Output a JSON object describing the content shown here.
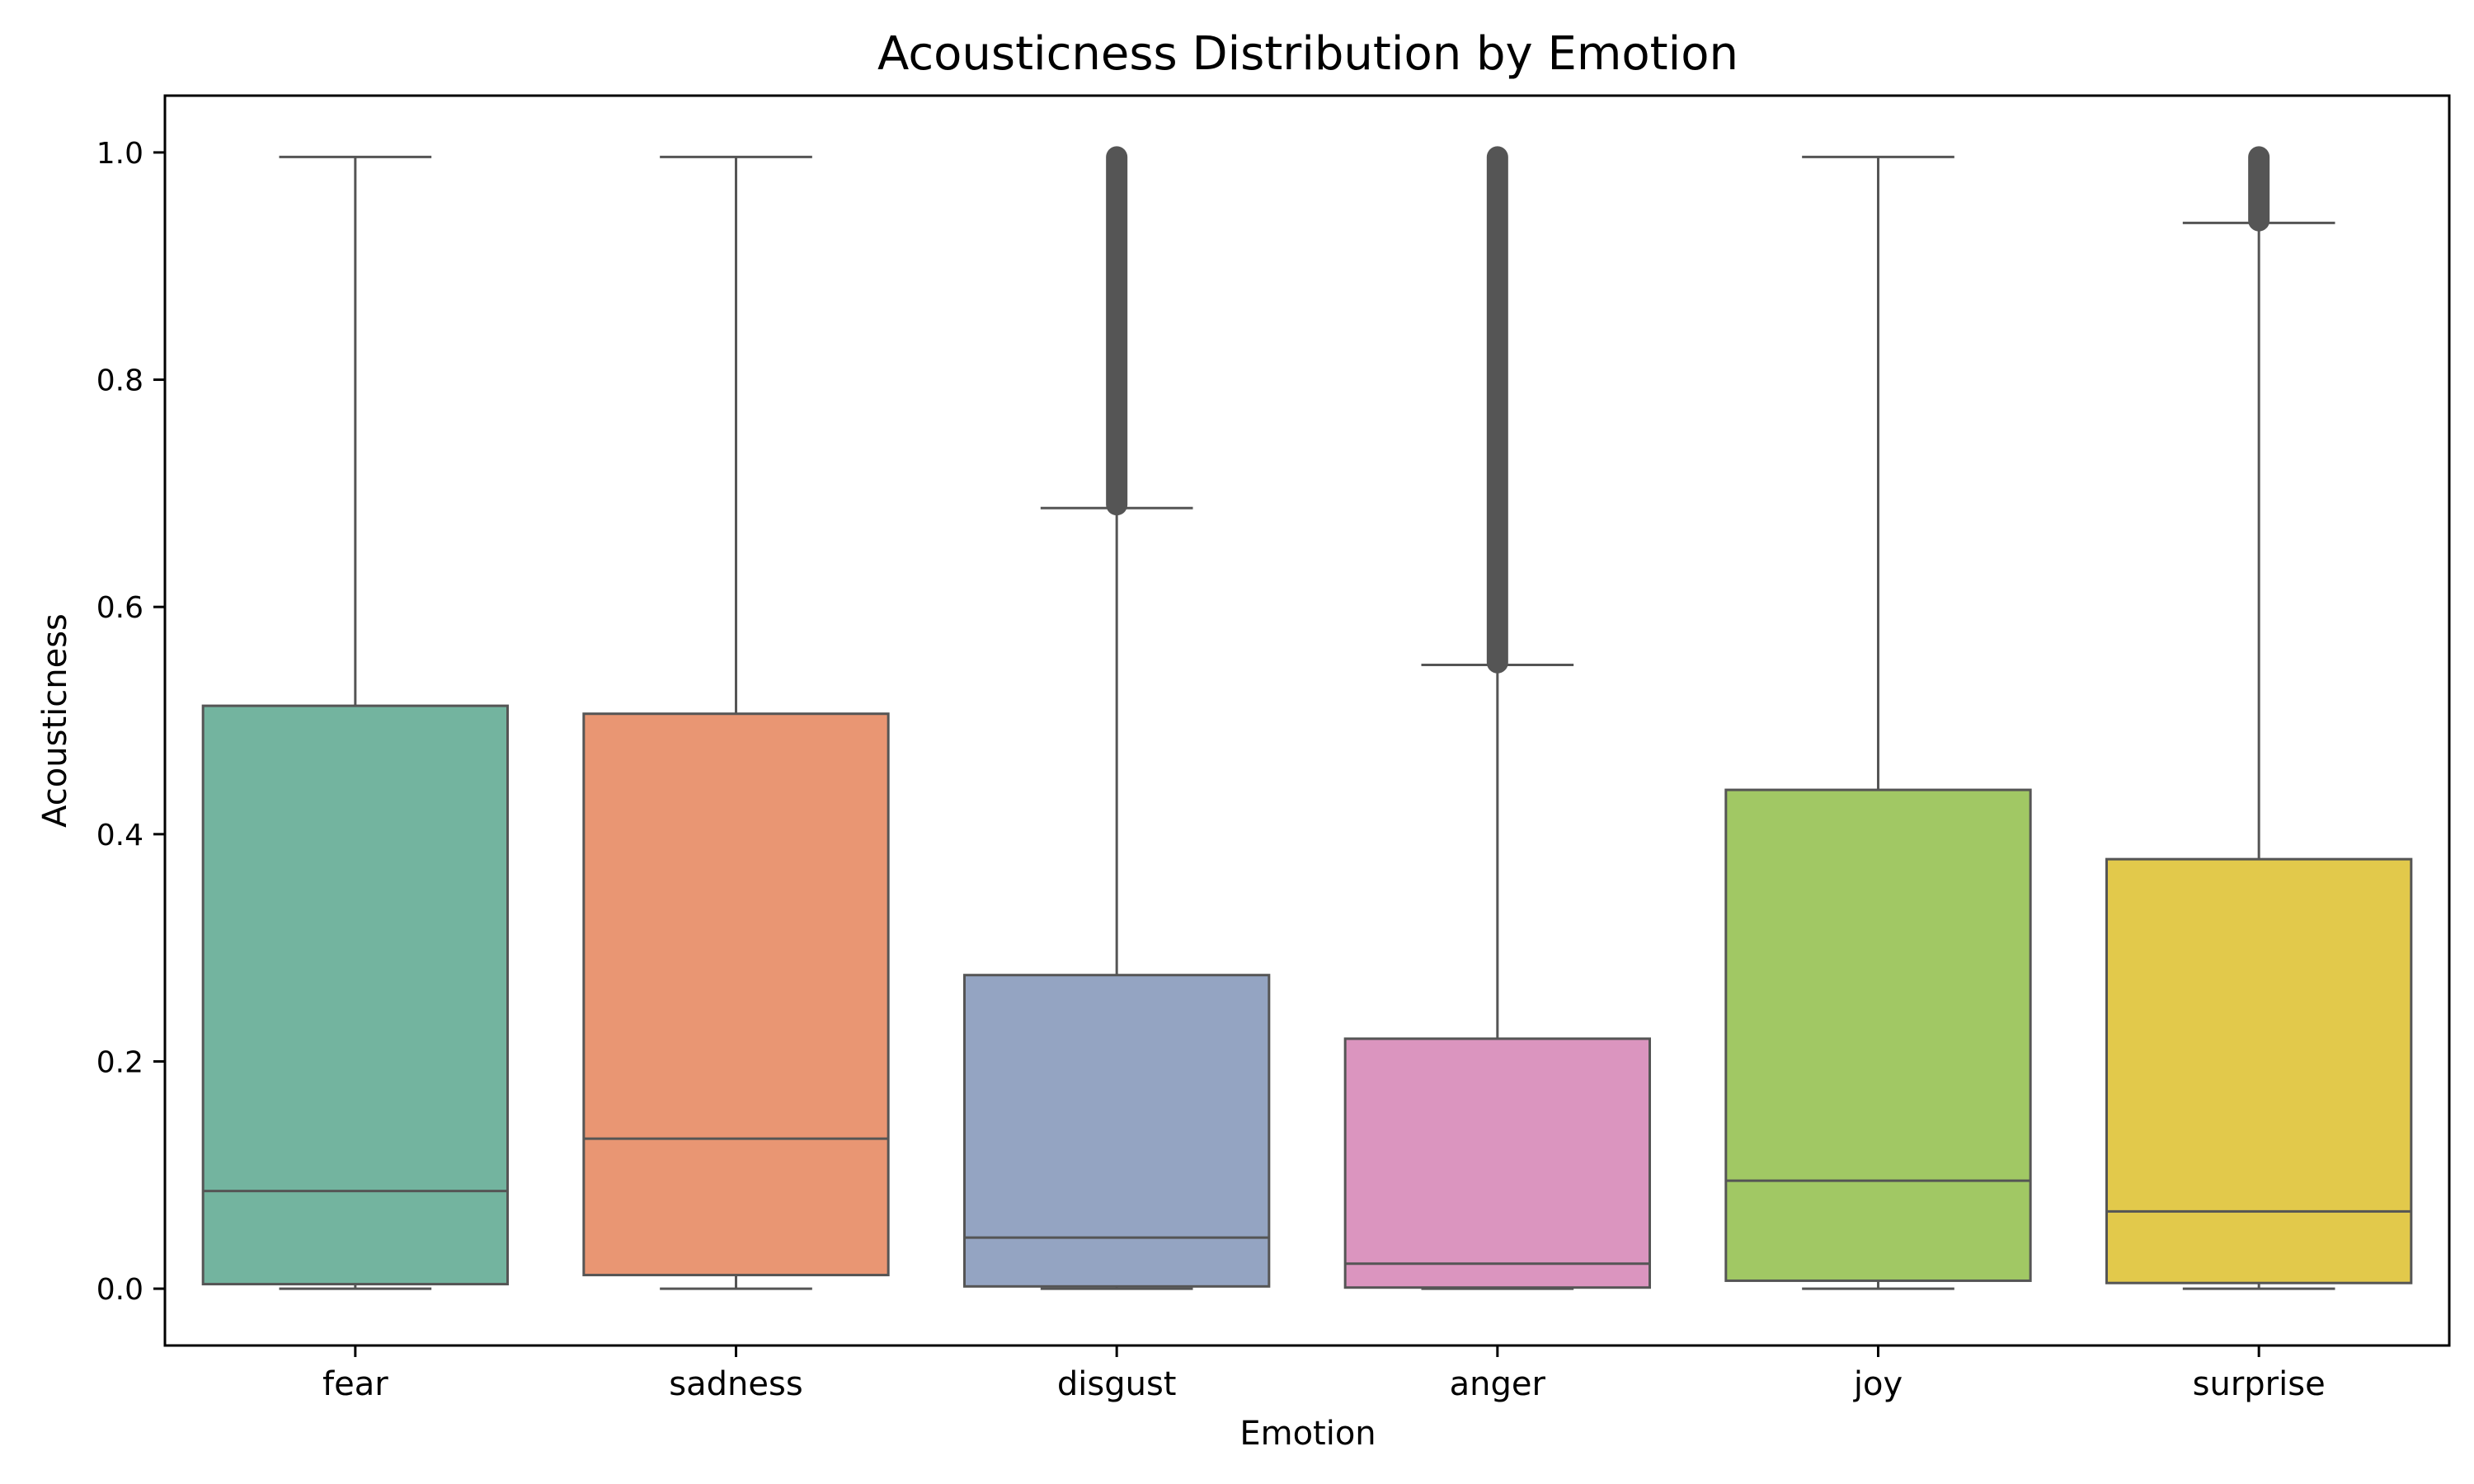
{
  "chart_data": {
    "type": "box",
    "title": "Acousticness Distribution by Emotion",
    "xlabel": "Emotion",
    "ylabel": "Acousticness",
    "ylim": [
      -0.05,
      1.05
    ],
    "yticks": [
      0.0,
      0.2,
      0.4,
      0.6,
      0.8,
      1.0
    ],
    "ytick_labels": [
      "0.0",
      "0.2",
      "0.4",
      "0.6",
      "0.8",
      "1.0"
    ],
    "grid": false,
    "legend": "none",
    "categories": [
      "fear",
      "sadness",
      "disgust",
      "anger",
      "joy",
      "surprise"
    ],
    "colors": [
      "#73b49f",
      "#e99673",
      "#94a4c2",
      "#db95bf",
      "#a1c864",
      "#e2c94b"
    ],
    "edge_color": "#555555",
    "boxes": [
      {
        "name": "fear",
        "whisker_low": 0.0,
        "q1": 0.004,
        "median": 0.086,
        "q3": 0.513,
        "whisker_high": 0.996,
        "outliers_low": null,
        "outliers_high": null
      },
      {
        "name": "sadness",
        "whisker_low": 0.0,
        "q1": 0.012,
        "median": 0.132,
        "q3": 0.506,
        "whisker_high": 0.996,
        "outliers_low": null,
        "outliers_high": null
      },
      {
        "name": "disgust",
        "whisker_low": 0.0,
        "q1": 0.002,
        "median": 0.045,
        "q3": 0.276,
        "whisker_high": 0.687,
        "outliers_low": 0.69,
        "outliers_high": 0.996
      },
      {
        "name": "anger",
        "whisker_low": 0.0,
        "q1": 0.001,
        "median": 0.022,
        "q3": 0.22,
        "whisker_high": 0.549,
        "outliers_low": 0.551,
        "outliers_high": 0.996
      },
      {
        "name": "joy",
        "whisker_low": 0.0,
        "q1": 0.007,
        "median": 0.095,
        "q3": 0.439,
        "whisker_high": 0.996,
        "outliers_low": null,
        "outliers_high": null
      },
      {
        "name": "surprise",
        "whisker_low": 0.0,
        "q1": 0.005,
        "median": 0.068,
        "q3": 0.378,
        "whisker_high": 0.938,
        "outliers_low": 0.94,
        "outliers_high": 0.996
      }
    ]
  }
}
